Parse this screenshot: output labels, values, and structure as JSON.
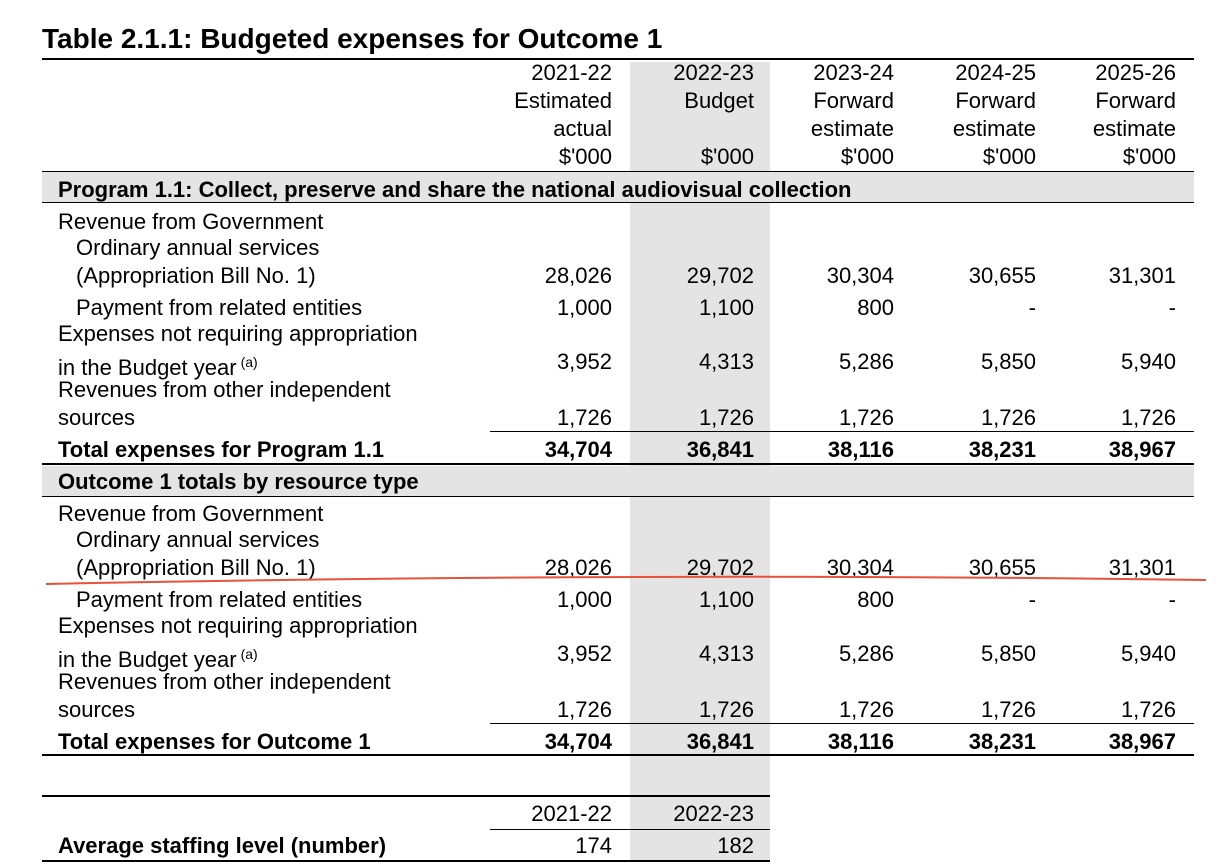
{
  "title": "Table 2.1.1: Budgeted expenses for Outcome 1",
  "columns": [
    {
      "year": "2021-22",
      "line1": "Estimated",
      "line2": "actual",
      "unit": "$'000"
    },
    {
      "year": "2022-23",
      "line1": "Budget",
      "line2": "",
      "unit": "$'000"
    },
    {
      "year": "2023-24",
      "line1": "Forward",
      "line2": "estimate",
      "unit": "$'000"
    },
    {
      "year": "2024-25",
      "line1": "Forward",
      "line2": "estimate",
      "unit": "$'000"
    },
    {
      "year": "2025-26",
      "line1": "Forward",
      "line2": "estimate",
      "unit": "$'000"
    }
  ],
  "sections": [
    {
      "heading": "Program 1.1: Collect, preserve and share the national audiovisual collection",
      "revenue_label": "Revenue from Government",
      "ordinary_label_1": "Ordinary annual services",
      "ordinary_label_2": "(Appropriation Bill No. 1)",
      "ordinary_values": [
        "28,026",
        "29,702",
        "30,304",
        "30,655",
        "31,301"
      ],
      "payment_label": "Payment from related entities",
      "payment_values": [
        "1,000",
        "1,100",
        "800",
        "-",
        "-"
      ],
      "expenses_label_1": "Expenses not requiring appropriation",
      "expenses_label_2": "in the Budget year",
      "expenses_note": "(a)",
      "expenses_values": [
        "3,952",
        "4,313",
        "5,286",
        "5,850",
        "5,940"
      ],
      "other_label_1": "Revenues from other independent",
      "other_label_2": "sources",
      "other_values": [
        "1,726",
        "1,726",
        "1,726",
        "1,726",
        "1,726"
      ],
      "total_label": "Total expenses for Program 1.1",
      "total_values": [
        "34,704",
        "36,841",
        "38,116",
        "38,231",
        "38,967"
      ]
    },
    {
      "heading": "Outcome 1 totals by resource type",
      "revenue_label": "Revenue from Government",
      "ordinary_label_1": "Ordinary annual services",
      "ordinary_label_2": "(Appropriation Bill No. 1)",
      "ordinary_values": [
        "28,026",
        "29,702",
        "30,304",
        "30,655",
        "31,301"
      ],
      "payment_label": "Payment from related entities",
      "payment_values": [
        "1,000",
        "1,100",
        "800",
        "-",
        "-"
      ],
      "expenses_label_1": "Expenses not requiring appropriation",
      "expenses_label_2": "in the Budget year",
      "expenses_note": "(a)",
      "expenses_values": [
        "3,952",
        "4,313",
        "5,286",
        "5,850",
        "5,940"
      ],
      "other_label_1": "Revenues from other independent",
      "other_label_2": "sources",
      "other_values": [
        "1,726",
        "1,726",
        "1,726",
        "1,726",
        "1,726"
      ],
      "total_label": "Total expenses for Outcome 1",
      "total_values": [
        "34,704",
        "36,841",
        "38,116",
        "38,231",
        "38,967"
      ]
    }
  ],
  "staffing": {
    "years": [
      "2021-22",
      "2022-23"
    ],
    "label": "Average staffing level (number)",
    "values": [
      "174",
      "182"
    ]
  },
  "colors": {
    "budget_column_shade": "#e4e4e4",
    "annotation_line": "#e8513a"
  }
}
